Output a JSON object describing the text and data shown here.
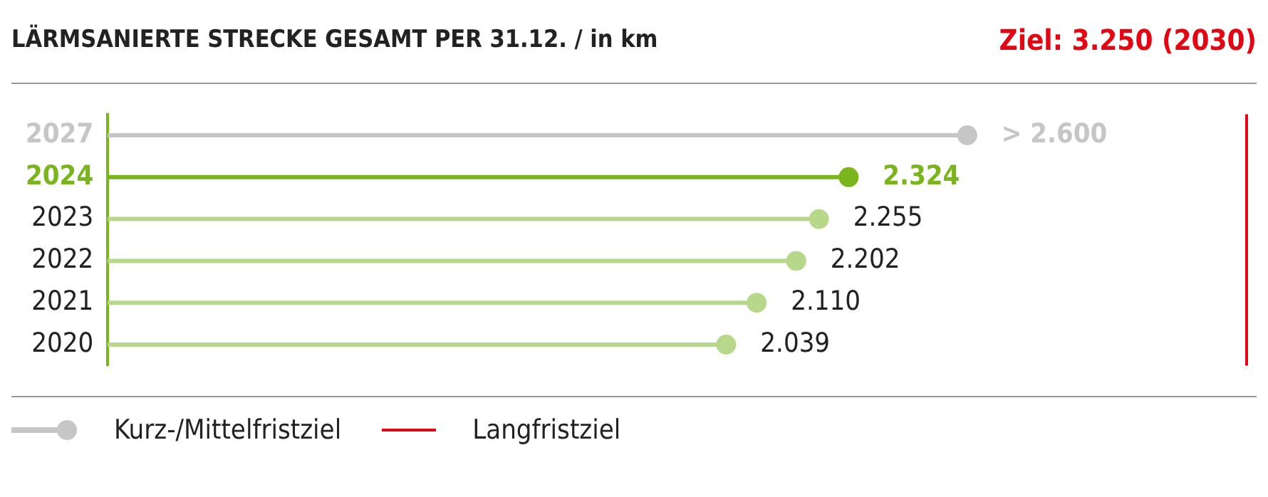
{
  "chart_data": {
    "type": "lollipop",
    "orientation": "horizontal",
    "title": "LÄRMSANIERTE STRECKE GESAMT PER 31.12.  /  in km",
    "categories": [
      "2027",
      "2024",
      "2023",
      "2022",
      "2021",
      "2020"
    ],
    "series": [
      {
        "name": "Kurz-/Mittelfristziel",
        "color": "#c6c6c6",
        "values": [
          2600,
          null,
          null,
          null,
          null,
          null
        ],
        "value_labels": [
          "> 2.600",
          null,
          null,
          null,
          null,
          null
        ]
      },
      {
        "colors": [
          null,
          "#7ab51d",
          "#b7d78b",
          "#b7d78b",
          "#b7d78b",
          "#b7d78b"
        ],
        "values": [
          null,
          2324,
          2255,
          2202,
          2110,
          2039
        ],
        "value_labels": [
          null,
          "2.324",
          "2.255",
          "2.202",
          "2.110",
          "2.039"
        ]
      }
    ],
    "xlim": [
      600,
      3250
    ],
    "ref_lines": [
      {
        "axis": "x",
        "value": 3250,
        "label": "Langfristziel",
        "color": "#e30613"
      }
    ],
    "annotations": [
      "Ziel: 3.250 (2030)"
    ],
    "legend": "bottom"
  }
}
